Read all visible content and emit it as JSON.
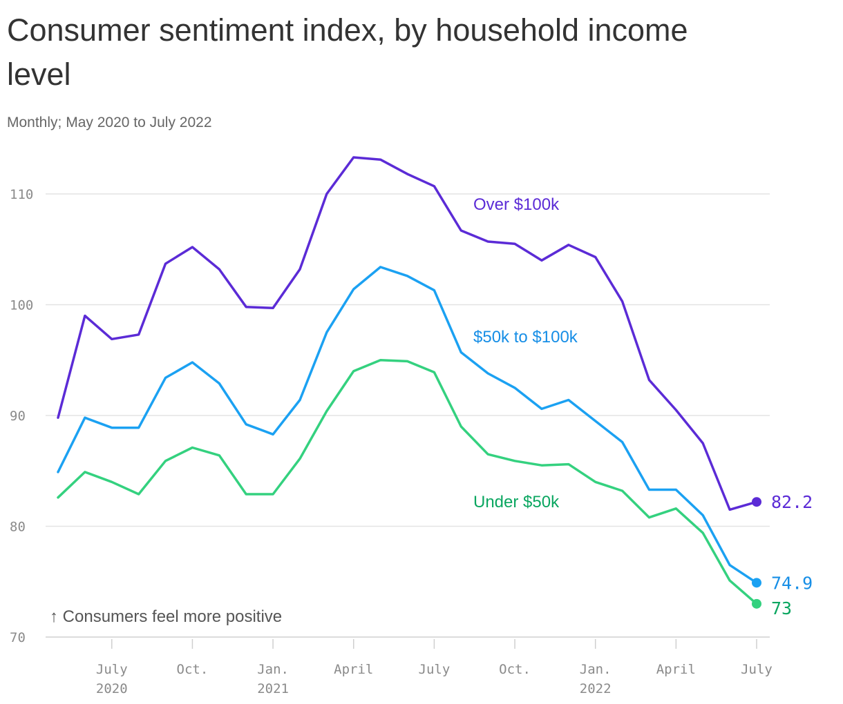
{
  "chart_data": {
    "type": "line",
    "title": "Consumer sentiment index, by household income level",
    "subtitle": "Monthly; May 2020 to July 2022",
    "annotation": "↑ Consumers feel more positive",
    "ylim": [
      70,
      113
    ],
    "yticks": [
      70,
      80,
      90,
      100,
      110
    ],
    "grid": true,
    "x": [
      "2020-05",
      "2020-06",
      "2020-07",
      "2020-08",
      "2020-09",
      "2020-10",
      "2020-11",
      "2020-12",
      "2021-01",
      "2021-02",
      "2021-03",
      "2021-04",
      "2021-05",
      "2021-06",
      "2021-07",
      "2021-08",
      "2021-09",
      "2021-10",
      "2021-11",
      "2021-12",
      "2022-01",
      "2022-02",
      "2022-03",
      "2022-04",
      "2022-05",
      "2022-06",
      "2022-07"
    ],
    "xticks": [
      {
        "x": "2020-07",
        "lines": [
          "July",
          "2020"
        ]
      },
      {
        "x": "2020-10",
        "lines": [
          "Oct.",
          ""
        ]
      },
      {
        "x": "2021-01",
        "lines": [
          "Jan.",
          "2021"
        ]
      },
      {
        "x": "2021-04",
        "lines": [
          "April",
          ""
        ]
      },
      {
        "x": "2021-07",
        "lines": [
          "July",
          ""
        ]
      },
      {
        "x": "2021-10",
        "lines": [
          "Oct.",
          ""
        ]
      },
      {
        "x": "2022-01",
        "lines": [
          "Jan.",
          "2022"
        ]
      },
      {
        "x": "2022-04",
        "lines": [
          "April",
          ""
        ]
      },
      {
        "x": "2022-07",
        "lines": [
          "July",
          ""
        ]
      }
    ],
    "series": [
      {
        "name": "Over $100k",
        "color": "#5b2bd6",
        "label_color": "#5b2bd6",
        "end_label": "82.2",
        "values": [
          89.8,
          99.0,
          96.9,
          97.3,
          103.7,
          105.2,
          103.2,
          99.8,
          99.7,
          103.2,
          110.0,
          113.3,
          113.1,
          111.8,
          110.7,
          106.7,
          105.7,
          105.5,
          104.0,
          105.4,
          104.3,
          100.3,
          93.2,
          90.5,
          87.5,
          81.5,
          82.2
        ]
      },
      {
        "name": "$50k to $100k",
        "color": "#1ba1f2",
        "label_color": "#168ee6",
        "end_label": "74.9",
        "values": [
          84.9,
          89.8,
          88.9,
          88.9,
          93.4,
          94.8,
          92.9,
          89.2,
          88.3,
          91.4,
          97.5,
          101.4,
          103.4,
          102.6,
          101.3,
          95.7,
          93.8,
          92.5,
          90.6,
          91.4,
          89.5,
          87.6,
          83.3,
          83.3,
          81.0,
          76.5,
          74.9
        ]
      },
      {
        "name": "Under $50k",
        "color": "#34d17f",
        "label_color": "#0aa660",
        "end_label": "73",
        "values": [
          82.6,
          84.9,
          84.0,
          82.9,
          85.9,
          87.1,
          86.4,
          82.9,
          82.9,
          86.1,
          90.4,
          94.0,
          95.0,
          94.9,
          93.9,
          89.0,
          86.5,
          85.9,
          85.5,
          85.6,
          84.0,
          83.2,
          80.8,
          81.6,
          79.4,
          75.1,
          73.0
        ]
      }
    ]
  }
}
